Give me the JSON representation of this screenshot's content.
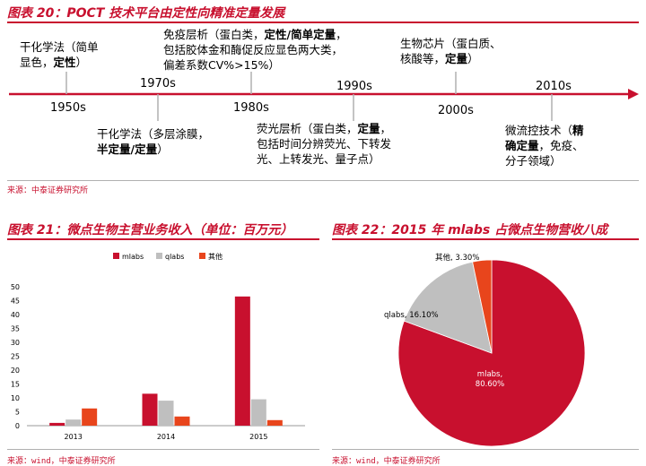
{
  "fig20": {
    "title": "图表 20：POCT 技术平台由定性向精准定量发展",
    "source": "来源：中泰证券研究所",
    "years": [
      "1950s",
      "1970s",
      "1980s",
      "1990s",
      "2000s",
      "2010s"
    ],
    "events": [
      {
        "normal1": "干化学法（简单",
        "normal2": "显色，",
        "bold": "定性",
        "tail": "）"
      },
      {
        "line1": "免疫层析（蛋白类，",
        "line1_bold": "定性/简单定量",
        "line1_tail": "，",
        "line2": "包括胶体金和酶促反应显色两大类，",
        "line3": "偏差系数CV%>15%）"
      },
      {
        "line1": "生物芯片（蛋白质、",
        "line2": "核酸等，",
        "bold": "定量",
        "tail": "）"
      },
      {
        "line1": "干化学法（多层涂膜，",
        "bold": "半定量/定量",
        "tail": "）"
      },
      {
        "line1": "荧光层析（蛋白类，",
        "line1_bold": "定量",
        "line1_tail": "，",
        "line2": "包括时间分辨荧光、下转发",
        "line3": "光、上转发光、量子点）"
      },
      {
        "line1": "微流控技术（",
        "line1_bold": "精",
        "line2_bold": "确定量",
        "line2": "，免疫、",
        "line3": "分子领域）"
      }
    ]
  },
  "fig21": {
    "title": "图表 21：微点生物主营业务收入（单位：百万元）",
    "source": "来源：wind，中泰证券研究所"
  },
  "fig22": {
    "title": "图表 22：2015 年 mlabs 占微点生物营收八成",
    "source": "来源：wind，中泰证券研究所"
  },
  "chart_data": [
    {
      "type": "bar",
      "categories": [
        "2013",
        "2014",
        "2015"
      ],
      "series": [
        {
          "name": "mlabs",
          "color": "#c8102e",
          "values": [
            1,
            11.5,
            46.5
          ]
        },
        {
          "name": "qlabs",
          "color": "#bfbfbf",
          "values": [
            2.2,
            9,
            9.5
          ]
        },
        {
          "name": "其他",
          "color": "#e8451c",
          "values": [
            6.2,
            3.3,
            2
          ]
        }
      ],
      "ylim": [
        0,
        50
      ],
      "yticks": [
        0,
        5,
        10,
        15,
        20,
        25,
        30,
        35,
        40,
        45,
        50
      ],
      "legend": "top"
    },
    {
      "type": "pie",
      "slices": [
        {
          "label": "mlabs, 80.60%",
          "name": "mlabs",
          "value": 80.6,
          "color": "#c8102e"
        },
        {
          "label": "qlabs, 16.10%",
          "name": "qlabs",
          "value": 16.1,
          "color": "#bfbfbf"
        },
        {
          "label": "其他, 3.30%",
          "name": "其他",
          "value": 3.3,
          "color": "#e8451c"
        }
      ]
    }
  ]
}
